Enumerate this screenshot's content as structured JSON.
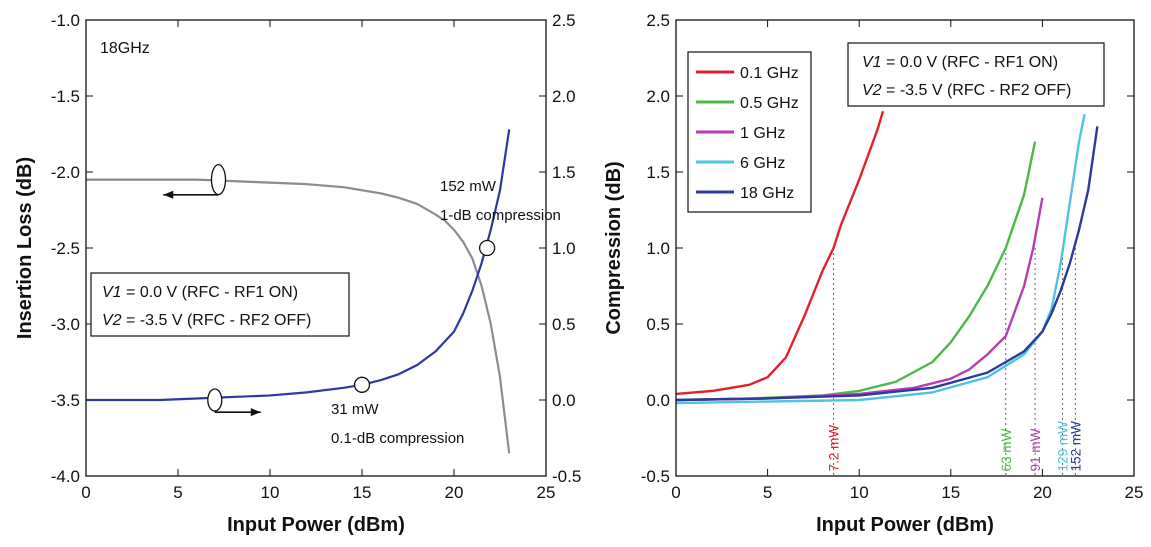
{
  "chart_data": [
    {
      "type": "line",
      "title": "",
      "xlabel": "Input Power (dBm)",
      "ylabel": "Insertion Loss (dB)",
      "xlim": [
        0,
        25
      ],
      "ylim": [
        -4.0,
        -1.0
      ],
      "y2lim": [
        -0.5,
        2.5
      ],
      "x_ticks": [
        "0",
        "5",
        "10",
        "15",
        "20",
        "25"
      ],
      "y_ticks": [
        "-1.0",
        "-1.5",
        "-2.0",
        "-2.5",
        "-3.0",
        "-3.5",
        "-4.0"
      ],
      "y2_ticks": [
        "2.5",
        "2.0",
        "1.5",
        "1.0",
        "0.5",
        "0.0",
        "-0.5"
      ],
      "grid": false,
      "series": [
        {
          "axis": "left",
          "color": "#8c8c8c",
          "x": [
            0,
            2,
            4,
            6,
            8,
            10,
            12,
            14,
            15,
            16,
            17,
            18,
            19,
            19.5,
            20,
            20.5,
            21,
            21.5,
            22,
            22.5,
            23
          ],
          "values": [
            -2.05,
            -2.05,
            -2.05,
            -2.05,
            -2.06,
            -2.07,
            -2.08,
            -2.1,
            -2.12,
            -2.14,
            -2.17,
            -2.21,
            -2.28,
            -2.32,
            -2.38,
            -2.46,
            -2.57,
            -2.75,
            -3.0,
            -3.35,
            -3.85
          ]
        },
        {
          "axis": "right",
          "color": "#2b3a9c",
          "x": [
            0,
            2,
            4,
            6,
            8,
            10,
            12,
            14,
            15,
            16,
            17,
            18,
            19,
            20,
            20.5,
            21,
            21.5,
            22,
            22.5,
            23
          ],
          "values": [
            0.0,
            0.0,
            0.0,
            0.01,
            0.02,
            0.03,
            0.05,
            0.08,
            0.1,
            0.13,
            0.17,
            0.23,
            0.32,
            0.45,
            0.57,
            0.72,
            0.9,
            1.12,
            1.38,
            1.78
          ]
        }
      ],
      "markers": [
        {
          "x": 7.2,
          "y": -2.05,
          "axis": "left"
        },
        {
          "x": 7.0,
          "y": -3.5,
          "axis": "left"
        },
        {
          "x": 15.0,
          "y": 0.1,
          "axis": "right"
        },
        {
          "x": 21.8,
          "y": 1.0,
          "axis": "right"
        }
      ],
      "arrows": [
        {
          "x_from": 7.2,
          "x_to": 4.2,
          "y": -2.15
        },
        {
          "x_from": 7.0,
          "x_to": 9.5,
          "y": -3.58
        }
      ],
      "annotations": {
        "freq": "18GHz",
        "comp1_line1": "152 mW",
        "comp1_line2": "1-dB compression",
        "comp01_line1": "31 mW",
        "comp01_line2": "0.1-dB compression",
        "box_v1_name": "V1",
        "box_v1_rest": " = 0.0 V (RFC - RF1 ON)",
        "box_v2_name": "V2",
        "box_v2_rest": " = -3.5 V (RFC - RF2 OFF)"
      }
    },
    {
      "type": "line",
      "title": "",
      "xlabel": "Input Power (dBm)",
      "ylabel": "Compression (dB)",
      "xlim": [
        0,
        25
      ],
      "ylim": [
        -0.5,
        2.5
      ],
      "x_ticks": [
        "0",
        "5",
        "10",
        "15",
        "20",
        "25"
      ],
      "y_ticks": [
        "2.5",
        "2.0",
        "1.5",
        "1.0",
        "0.5",
        "0.0",
        "-0.5"
      ],
      "grid": false,
      "legend_position": "top-left",
      "series": [
        {
          "name": "0.1 GHz",
          "color": "#e0232a",
          "x": [
            0,
            2,
            4,
            5,
            6,
            7,
            8,
            8.6,
            9,
            10,
            11,
            11.3
          ],
          "values": [
            0.04,
            0.06,
            0.1,
            0.15,
            0.28,
            0.55,
            0.85,
            1.0,
            1.15,
            1.45,
            1.78,
            1.9
          ]
        },
        {
          "name": "0.5 GHz",
          "color": "#4db848",
          "x": [
            0,
            4,
            8,
            10,
            12,
            14,
            15,
            16,
            17,
            18,
            19,
            19.6
          ],
          "values": [
            0.0,
            0.01,
            0.03,
            0.06,
            0.12,
            0.25,
            0.38,
            0.55,
            0.75,
            1.0,
            1.35,
            1.7
          ]
        },
        {
          "name": "1 GHz",
          "color": "#b83db5",
          "x": [
            0,
            5,
            10,
            13,
            15,
            16,
            17,
            18,
            19,
            19.5,
            20
          ],
          "values": [
            0.0,
            0.01,
            0.04,
            0.08,
            0.14,
            0.2,
            0.3,
            0.42,
            0.75,
            1.0,
            1.33
          ]
        },
        {
          "name": "6 GHz",
          "color": "#4fc3e0",
          "x": [
            0,
            5,
            10,
            14,
            17,
            19,
            20,
            20.5,
            21,
            21.5,
            22,
            22.3
          ],
          "values": [
            -0.02,
            -0.01,
            0.0,
            0.05,
            0.15,
            0.3,
            0.45,
            0.6,
            0.9,
            1.3,
            1.7,
            1.88
          ]
        },
        {
          "name": "18 GHz",
          "color": "#2b3a9c",
          "x": [
            0,
            5,
            10,
            14,
            17,
            19,
            20,
            20.5,
            21,
            21.5,
            22,
            22.5,
            23
          ],
          "values": [
            0.0,
            0.01,
            0.03,
            0.08,
            0.18,
            0.32,
            0.45,
            0.57,
            0.72,
            0.9,
            1.12,
            1.38,
            1.8
          ]
        }
      ],
      "drop_lines": [
        {
          "label": "7.2 mW",
          "x": 8.6,
          "y_top": 1.0,
          "color": "#e0232a"
        },
        {
          "label": "63 mW",
          "x": 18.0,
          "y_top": 1.0,
          "color": "#4db848"
        },
        {
          "label": "91 mW",
          "x": 19.6,
          "y_top": 1.0,
          "color": "#b83db5"
        },
        {
          "label": "129 mW",
          "x": 21.1,
          "y_top": 1.0,
          "color": "#4fc3e0"
        },
        {
          "label": "152 mW",
          "x": 21.8,
          "y_top": 1.0,
          "color": "#2b3a9c"
        }
      ],
      "annotations": {
        "box_v1_name": "V1",
        "box_v1_rest": " = 0.0 V (RFC - RF1 ON)",
        "box_v2_name": "V2",
        "box_v2_rest": " = -3.5 V (RFC - RF2 OFF)"
      }
    }
  ]
}
